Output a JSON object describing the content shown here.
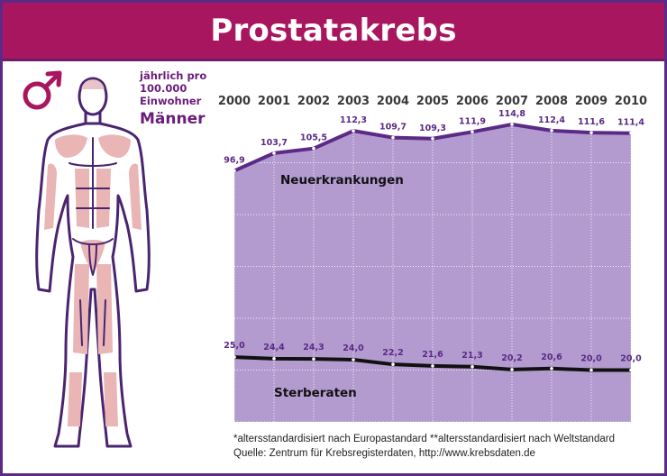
{
  "header": {
    "title": "Prostatakrebs"
  },
  "legend": {
    "line1": "jährlich pro",
    "line2": "100.000",
    "line3": "Einwohner",
    "group": "Männer"
  },
  "symbols": {
    "male": "male-symbol-icon"
  },
  "colors": {
    "header": "#a8165f",
    "area": "#b39bd0",
    "line_neuerkrankungen": "#5b2a86",
    "line_sterberaten": "#111111"
  },
  "chart_data": {
    "type": "area",
    "x": [
      "2000",
      "2001",
      "2002",
      "2003",
      "2004",
      "2005",
      "2006",
      "2007",
      "2008",
      "2009",
      "2010"
    ],
    "ylim": [
      0,
      120
    ],
    "grid": true,
    "series": [
      {
        "name": "Neuerkrankungen",
        "values": [
          96.9,
          103.7,
          105.5,
          112.3,
          109.7,
          109.3,
          111.9,
          114.8,
          112.4,
          111.6,
          111.4
        ],
        "labels": [
          "96,9",
          "103,7",
          "105,5",
          "112,3",
          "109,7",
          "109,3",
          "111,9",
          "114,8",
          "112,4",
          "111,6",
          "111,4"
        ]
      },
      {
        "name": "Sterberaten",
        "values": [
          25.0,
          24.4,
          24.3,
          24.0,
          22.2,
          21.6,
          21.3,
          20.2,
          20.6,
          20.0,
          20.0
        ],
        "labels": [
          "25,0",
          "24,4",
          "24,3",
          "24,0",
          "22,2",
          "21,6",
          "21,3",
          "20,2",
          "20,6",
          "20,0",
          "20,0"
        ]
      }
    ]
  },
  "footnotes": {
    "standards": "*altersstandardisiert nach Europastandard   **altersstandardisiert nach Weltstandard",
    "source": "Quelle: Zentrum für Krebsregisterdaten, http://www.krebsdaten.de"
  }
}
